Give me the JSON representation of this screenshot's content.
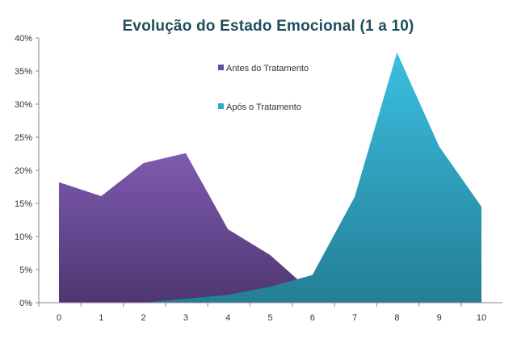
{
  "chart_data": {
    "type": "area",
    "title": "Evolução do Estado Emocional (1 a 10)",
    "xlabel": "",
    "ylabel": "",
    "categories": [
      "0",
      "1",
      "2",
      "3",
      "4",
      "5",
      "6",
      "7",
      "8",
      "9",
      "10"
    ],
    "y_ticks": [
      "0%",
      "5%",
      "10%",
      "15%",
      "20%",
      "25%",
      "30%",
      "35%",
      "40%"
    ],
    "ylim": [
      0,
      40
    ],
    "grid": false,
    "legend_position": "top-center",
    "series": [
      {
        "name": "Antes do Tratamento",
        "color": "#6B4C9A",
        "values": [
          18.2,
          16.1,
          21.1,
          22.6,
          11.1,
          7.2,
          1.5,
          null,
          null,
          null,
          null
        ]
      },
      {
        "name": "Após o Tratamento",
        "color": "#2FA8C8",
        "values": [
          null,
          null,
          0.0,
          0.6,
          1.2,
          2.4,
          4.2,
          16.0,
          37.8,
          23.6,
          14.5
        ]
      }
    ]
  }
}
